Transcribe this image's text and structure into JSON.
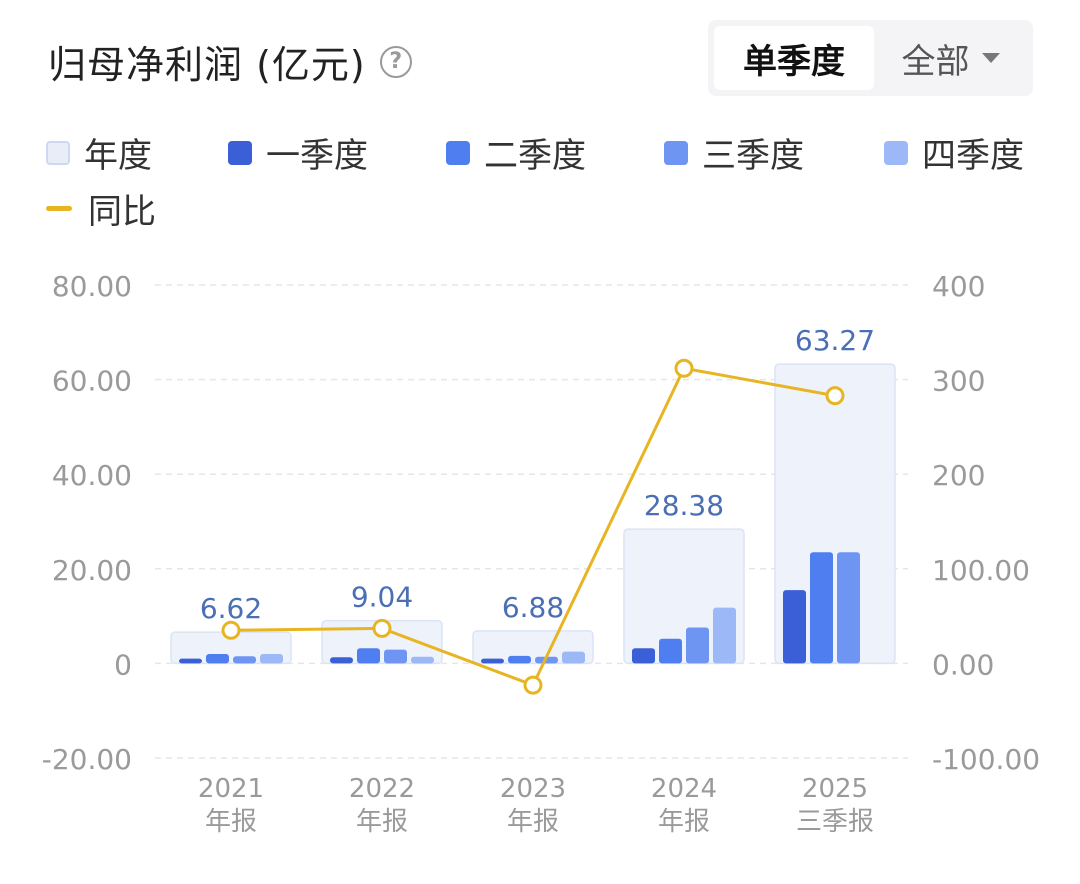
{
  "header": {
    "title": "归母净利润 (亿元)",
    "help_icon": "question-circle-icon"
  },
  "toggle": {
    "active_label": "单季度",
    "dropdown_label": "全部",
    "dropdown_icon": "caret-down-icon"
  },
  "legend": [
    {
      "label": "年度",
      "color": "#e8edf8",
      "border": "#cdd9f2",
      "kind": "box"
    },
    {
      "label": "一季度",
      "color": "#3a5fd6",
      "kind": "box"
    },
    {
      "label": "二季度",
      "color": "#4e7ef0",
      "kind": "box"
    },
    {
      "label": "三季度",
      "color": "#6f95f3",
      "kind": "box"
    },
    {
      "label": "四季度",
      "color": "#9db8f6",
      "kind": "box"
    },
    {
      "label": "同比",
      "color": "#e8b522",
      "kind": "line"
    }
  ],
  "chart_data": {
    "type": "bar",
    "categories": [
      [
        "2021",
        "年报"
      ],
      [
        "2022",
        "年报"
      ],
      [
        "2023",
        "年报"
      ],
      [
        "2024",
        "年报"
      ],
      [
        "2025",
        "三季报"
      ]
    ],
    "annual": {
      "name": "年度",
      "values": [
        6.62,
        9.04,
        6.88,
        28.38,
        63.27
      ],
      "labels": [
        "6.62",
        "9.04",
        "6.88",
        "28.38",
        "63.27"
      ]
    },
    "quarterly": [
      {
        "name": "一季度",
        "values": [
          1.0,
          1.3,
          1.0,
          3.2,
          15.5
        ]
      },
      {
        "name": "二季度",
        "values": [
          2.0,
          3.2,
          1.6,
          5.2,
          23.5
        ]
      },
      {
        "name": "三季度",
        "values": [
          1.5,
          2.9,
          1.4,
          7.6,
          23.5
        ]
      },
      {
        "name": "四季度",
        "values": [
          2.0,
          1.4,
          2.5,
          11.8,
          null
        ]
      }
    ],
    "yoy": {
      "name": "同比",
      "values": [
        35,
        37,
        -23,
        312,
        283
      ]
    },
    "y_left": {
      "min": -20,
      "max": 80,
      "ticks": [
        80,
        60,
        40,
        20,
        0,
        -20
      ],
      "tick_labels": [
        "80.00",
        "60.00",
        "40.00",
        "20.00",
        "0",
        "-20.00"
      ]
    },
    "y_right": {
      "min": -100,
      "max": 400,
      "ticks": [
        400,
        300,
        200,
        100,
        0,
        -100
      ],
      "tick_labels": [
        "400",
        "300",
        "200",
        "100.00",
        "0.00",
        "-100.00"
      ]
    },
    "grid": true
  }
}
